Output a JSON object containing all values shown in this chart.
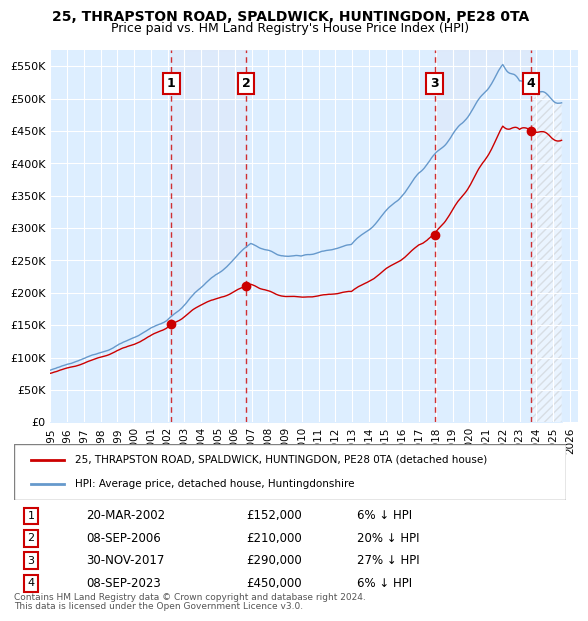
{
  "title1": "25, THRAPSTON ROAD, SPALDWICK, HUNTINGDON, PE28 0TA",
  "title2": "Price paid vs. HM Land Registry's House Price Index (HPI)",
  "legend_red": "25, THRAPSTON ROAD, SPALDWICK, HUNTINGDON, PE28 0TA (detached house)",
  "legend_blue": "HPI: Average price, detached house, Huntingdonshire",
  "footer1": "Contains HM Land Registry data © Crown copyright and database right 2024.",
  "footer2": "This data is licensed under the Open Government Licence v3.0.",
  "sales": [
    {
      "num": 1,
      "date": "20-MAR-2002",
      "price": 152000,
      "pct": "6%",
      "x_year": 2002.22
    },
    {
      "num": 2,
      "date": "08-SEP-2006",
      "price": 210000,
      "pct": "20%",
      "x_year": 2006.69
    },
    {
      "num": 3,
      "date": "30-NOV-2017",
      "price": 290000,
      "pct": "27%",
      "x_year": 2017.92
    },
    {
      "num": 4,
      "date": "08-SEP-2023",
      "price": 450000,
      "pct": "6%",
      "x_year": 2023.69
    }
  ],
  "ylim": [
    0,
    575000
  ],
  "xlim_start": 1995.0,
  "xlim_end": 2026.5,
  "yticks": [
    0,
    50000,
    100000,
    150000,
    200000,
    250000,
    300000,
    350000,
    400000,
    450000,
    500000,
    550000
  ],
  "ytick_labels": [
    "£0",
    "£50K",
    "£100K",
    "£150K",
    "£200K",
    "£250K",
    "£300K",
    "£350K",
    "£400K",
    "£450K",
    "£500K",
    "£550K"
  ],
  "xtick_years": [
    1995,
    1996,
    1997,
    1998,
    1999,
    2000,
    2001,
    2002,
    2003,
    2004,
    2005,
    2006,
    2007,
    2008,
    2009,
    2010,
    2011,
    2012,
    2013,
    2014,
    2015,
    2016,
    2017,
    2018,
    2019,
    2020,
    2021,
    2022,
    2023,
    2024,
    2025,
    2026
  ],
  "red_color": "#cc0000",
  "blue_color": "#6699cc",
  "hatch_color": "#aaaaaa",
  "bg_color": "#ddeeff",
  "grid_color": "#ffffff",
  "label_box_color": "#ffffff",
  "label_box_edge": "#cc0000"
}
